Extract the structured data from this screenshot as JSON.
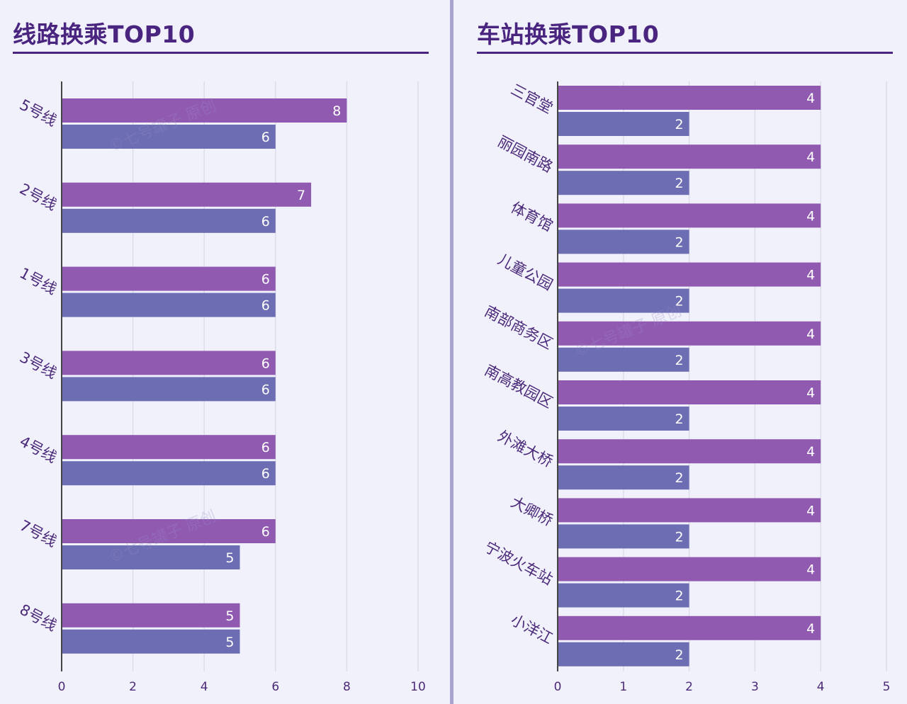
{
  "colors": {
    "series_a": "#915ab1",
    "series_b": "#6c6db2",
    "title": "#4a2580",
    "label": "#4b2a7a",
    "axis": "#444444",
    "grid": "#dcdcea",
    "bar_text": "#ffffff"
  },
  "watermark": "©七号罐子 原创",
  "chart_data": [
    {
      "type": "bar",
      "orientation": "horizontal",
      "title": "线路换乘TOP10",
      "categories": [
        "5号线",
        "2号线",
        "1号线",
        "3号线",
        "4号线",
        "7号线",
        "8号线"
      ],
      "series": [
        {
          "name": "series_a",
          "values": [
            8,
            7,
            6,
            6,
            6,
            6,
            5
          ]
        },
        {
          "name": "series_b",
          "values": [
            6,
            6,
            6,
            6,
            6,
            5,
            5
          ]
        }
      ],
      "xlim": [
        0,
        10
      ],
      "xticks": [
        0,
        2,
        4,
        6,
        8,
        10
      ],
      "grid": true,
      "legend": "none"
    },
    {
      "type": "bar",
      "orientation": "horizontal",
      "title": "车站换乘TOP10",
      "categories": [
        "三官堂",
        "丽园南路",
        "体育馆",
        "儿童公园",
        "南部商务区",
        "南高教园区",
        "外滩大桥",
        "大卿桥",
        "宁波火车站",
        "小洋江"
      ],
      "series": [
        {
          "name": "series_a",
          "values": [
            4,
            4,
            4,
            4,
            4,
            4,
            4,
            4,
            4,
            4
          ]
        },
        {
          "name": "series_b",
          "values": [
            2,
            2,
            2,
            2,
            2,
            2,
            2,
            2,
            2,
            2
          ]
        }
      ],
      "xlim": [
        0,
        5
      ],
      "xticks": [
        0,
        1,
        2,
        3,
        4,
        5
      ],
      "grid": true,
      "legend": "none"
    }
  ]
}
